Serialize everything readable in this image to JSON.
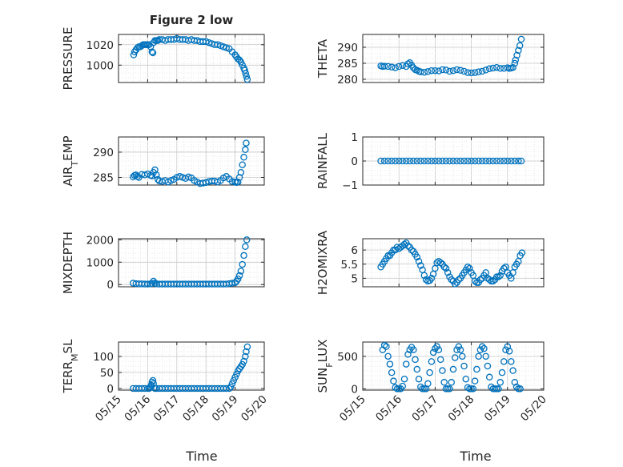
{
  "figure": {
    "title": "Figure 2 low",
    "xlabel": "Time"
  },
  "colors": {
    "marker": "#0072BD",
    "axis": "#262626",
    "grid": "#c8c8c8",
    "minor_grid": "#e2e2e2"
  },
  "chart_data": [
    {
      "type": "scatter",
      "ylabel": "PRESSURE",
      "ylim": [
        983,
        1030
      ],
      "yticks": [
        1000,
        1020
      ],
      "show_xticklabels": false,
      "x": [
        0.52,
        0.55,
        0.6,
        0.65,
        0.7,
        0.75,
        0.8,
        0.85,
        0.9,
        0.95,
        1.0,
        1.05,
        1.1,
        1.15,
        1.18,
        1.2,
        1.25,
        1.3,
        1.35,
        1.4,
        1.5,
        1.6,
        1.7,
        1.8,
        1.9,
        2.0,
        2.1,
        2.2,
        2.3,
        2.4,
        2.5,
        2.6,
        2.7,
        2.8,
        2.9,
        3.0,
        3.1,
        3.2,
        3.3,
        3.4,
        3.5,
        3.6,
        3.7,
        3.8,
        3.9,
        4.0,
        4.05,
        4.1,
        4.15,
        4.2,
        4.25,
        4.3,
        4.33,
        4.36,
        4.39,
        4.42
      ],
      "y": [
        1010,
        1013,
        1015,
        1017,
        1018,
        1018,
        1019,
        1020,
        1020,
        1020,
        1020,
        1020,
        1018,
        1013,
        1012,
        1022,
        1024,
        1024,
        1024,
        1025,
        1025,
        1024,
        1025,
        1025,
        1025,
        1026,
        1025,
        1025,
        1025,
        1024,
        1025,
        1024,
        1024,
        1023,
        1023,
        1023,
        1022,
        1021,
        1020,
        1020,
        1019,
        1018,
        1017,
        1016,
        1013,
        1010,
        1008,
        1006,
        1005,
        1003,
        1000,
        997,
        995,
        992,
        989,
        986
      ]
    },
    {
      "type": "scatter",
      "ylabel": "THETA",
      "ylim": [
        279,
        294
      ],
      "yticks": [
        280,
        285,
        290
      ],
      "show_xticklabels": false,
      "x": [
        0.5,
        0.55,
        0.6,
        0.7,
        0.8,
        0.9,
        1.0,
        1.1,
        1.2,
        1.25,
        1.3,
        1.35,
        1.4,
        1.45,
        1.5,
        1.55,
        1.6,
        1.7,
        1.8,
        1.9,
        2.0,
        2.1,
        2.2,
        2.3,
        2.4,
        2.5,
        2.6,
        2.7,
        2.8,
        2.9,
        3.0,
        3.1,
        3.2,
        3.3,
        3.4,
        3.5,
        3.6,
        3.7,
        3.8,
        3.9,
        4.0,
        4.05,
        4.1,
        4.15,
        4.2,
        4.22,
        4.26,
        4.3,
        4.34,
        4.38
      ],
      "y": [
        284.2,
        284.0,
        284.1,
        284.0,
        283.8,
        283.6,
        284.0,
        284.3,
        284.0,
        284.8,
        285.2,
        284.4,
        283.6,
        283.0,
        282.8,
        282.5,
        282.3,
        282.2,
        282.4,
        282.7,
        282.7,
        282.6,
        283.0,
        282.9,
        282.5,
        282.7,
        283.0,
        282.8,
        282.5,
        282.1,
        282.0,
        282.1,
        282.3,
        282.5,
        282.9,
        283.3,
        283.5,
        283.7,
        283.4,
        283.4,
        283.6,
        283.4,
        283.5,
        283.7,
        285.0,
        286.0,
        287.5,
        289.0,
        290.5,
        292.5
      ]
    },
    {
      "type": "scatter",
      "ylabel": "AIR_TEMP",
      "ylim": [
        283.5,
        293
      ],
      "yticks": [
        285,
        290
      ],
      "show_xticklabels": false,
      "x": [
        0.5,
        0.55,
        0.6,
        0.65,
        0.7,
        0.8,
        0.9,
        1.0,
        1.1,
        1.15,
        1.2,
        1.25,
        1.3,
        1.35,
        1.4,
        1.5,
        1.6,
        1.7,
        1.8,
        1.9,
        2.0,
        2.1,
        2.2,
        2.3,
        2.4,
        2.5,
        2.6,
        2.7,
        2.8,
        2.9,
        3.0,
        3.1,
        3.2,
        3.3,
        3.4,
        3.5,
        3.6,
        3.7,
        3.8,
        3.9,
        4.0,
        4.05,
        4.1,
        4.15,
        4.2,
        4.25,
        4.3,
        4.35,
        4.38
      ],
      "y": [
        285.1,
        285.4,
        285.5,
        285.2,
        285.0,
        285.6,
        285.5,
        285.7,
        285.4,
        285.3,
        286.0,
        286.5,
        285.5,
        284.6,
        284.3,
        284.2,
        284.4,
        284.1,
        284.4,
        284.6,
        285.0,
        285.2,
        285.0,
        284.8,
        285.1,
        284.9,
        284.4,
        284.1,
        283.8,
        283.9,
        284.0,
        284.2,
        284.3,
        284.3,
        284.1,
        284.4,
        284.9,
        285.2,
        284.7,
        284.2,
        284.1,
        284.0,
        284.1,
        285.0,
        286.0,
        287.5,
        289.0,
        290.5,
        291.8
      ]
    },
    {
      "type": "scatter",
      "ylabel": "RAINFALL",
      "ylim": [
        -1,
        1
      ],
      "yticks": [
        -1,
        0,
        1
      ],
      "show_xticklabels": false,
      "x": [
        0.5,
        0.6,
        0.7,
        0.8,
        0.9,
        1.0,
        1.1,
        1.2,
        1.3,
        1.4,
        1.5,
        1.6,
        1.7,
        1.8,
        1.9,
        2.0,
        2.1,
        2.2,
        2.3,
        2.4,
        2.5,
        2.6,
        2.7,
        2.8,
        2.9,
        3.0,
        3.1,
        3.2,
        3.3,
        3.4,
        3.5,
        3.6,
        3.7,
        3.8,
        3.9,
        4.0,
        4.1,
        4.2,
        4.3,
        4.38
      ],
      "y": [
        0,
        0,
        0,
        0,
        0,
        0,
        0,
        0,
        0,
        0,
        0,
        0,
        0,
        0,
        0,
        0,
        0,
        0,
        0,
        0,
        0,
        0,
        0,
        0,
        0,
        0,
        0,
        0,
        0,
        0,
        0,
        0,
        0,
        0,
        0,
        0,
        0,
        0,
        0,
        0
      ]
    },
    {
      "type": "scatter",
      "ylabel": "MIXDEPTH",
      "ylim": [
        -100,
        2050
      ],
      "yticks": [
        0,
        1000,
        2000
      ],
      "show_xticklabels": false,
      "x": [
        0.5,
        0.6,
        0.7,
        0.8,
        0.9,
        1.0,
        1.1,
        1.15,
        1.2,
        1.25,
        1.3,
        1.4,
        1.5,
        1.6,
        1.7,
        1.8,
        1.9,
        2.0,
        2.1,
        2.2,
        2.3,
        2.4,
        2.5,
        2.6,
        2.7,
        2.8,
        2.9,
        3.0,
        3.1,
        3.2,
        3.3,
        3.4,
        3.5,
        3.6,
        3.7,
        3.8,
        3.9,
        4.0,
        4.05,
        4.1,
        4.15,
        4.2,
        4.25,
        4.3,
        4.35,
        4.4
      ],
      "y": [
        60,
        40,
        30,
        30,
        20,
        20,
        30,
        50,
        150,
        60,
        30,
        20,
        20,
        20,
        20,
        20,
        20,
        20,
        20,
        20,
        20,
        20,
        20,
        20,
        20,
        20,
        20,
        20,
        20,
        20,
        20,
        20,
        20,
        20,
        20,
        40,
        60,
        80,
        150,
        250,
        400,
        600,
        900,
        1300,
        1700,
        2000
      ]
    },
    {
      "type": "scatter",
      "ylabel": "H2OMIXRA",
      "ylim": [
        4.7,
        6.4
      ],
      "yticks": [
        5,
        5.5,
        6
      ],
      "show_xticklabels": false,
      "x": [
        0.5,
        0.55,
        0.6,
        0.65,
        0.7,
        0.75,
        0.8,
        0.85,
        0.9,
        0.95,
        1.0,
        1.05,
        1.1,
        1.15,
        1.2,
        1.25,
        1.3,
        1.35,
        1.4,
        1.45,
        1.5,
        1.55,
        1.6,
        1.65,
        1.7,
        1.75,
        1.8,
        1.85,
        1.9,
        1.95,
        2.0,
        2.05,
        2.1,
        2.15,
        2.2,
        2.25,
        2.3,
        2.35,
        2.4,
        2.45,
        2.5,
        2.55,
        2.6,
        2.65,
        2.7,
        2.75,
        2.8,
        2.85,
        2.9,
        2.95,
        3.0,
        3.05,
        3.1,
        3.15,
        3.2,
        3.25,
        3.3,
        3.35,
        3.4,
        3.45,
        3.5,
        3.55,
        3.6,
        3.65,
        3.7,
        3.75,
        3.8,
        3.85,
        3.9,
        3.95,
        4.0,
        4.05,
        4.1,
        4.15,
        4.2,
        4.25,
        4.3,
        4.35,
        4.4
      ],
      "y": [
        5.4,
        5.5,
        5.6,
        5.7,
        5.8,
        5.8,
        5.9,
        6.0,
        6.0,
        6.1,
        6.05,
        6.1,
        6.15,
        6.2,
        6.25,
        6.15,
        6.1,
        6.0,
        5.95,
        5.85,
        5.75,
        5.6,
        5.45,
        5.3,
        5.1,
        4.95,
        4.9,
        4.92,
        5.0,
        5.15,
        5.35,
        5.55,
        5.6,
        5.55,
        5.5,
        5.4,
        5.35,
        5.2,
        5.05,
        4.95,
        4.9,
        4.8,
        4.85,
        4.95,
        5.0,
        5.1,
        5.2,
        5.3,
        5.4,
        5.35,
        5.2,
        5.1,
        4.9,
        4.85,
        4.85,
        4.95,
        5.0,
        5.1,
        5.2,
        5.0,
        4.95,
        4.9,
        4.9,
        4.95,
        5.05,
        5.05,
        5.1,
        5.25,
        5.35,
        5.4,
        5.2,
        5.1,
        5.0,
        5.2,
        5.4,
        5.5,
        5.6,
        5.8,
        5.9
      ]
    },
    {
      "type": "scatter",
      "ylabel": "TERR_MSL",
      "ylim": [
        -5,
        145
      ],
      "yticks": [
        0,
        50,
        100
      ],
      "show_xticklabels": true,
      "x": [
        0.5,
        0.6,
        0.7,
        0.8,
        0.9,
        1.0,
        1.05,
        1.1,
        1.12,
        1.15,
        1.18,
        1.2,
        1.25,
        1.3,
        1.4,
        1.5,
        1.6,
        1.7,
        1.8,
        1.9,
        2.0,
        2.1,
        2.2,
        2.3,
        2.4,
        2.5,
        2.6,
        2.7,
        2.8,
        2.9,
        3.0,
        3.1,
        3.2,
        3.3,
        3.4,
        3.5,
        3.6,
        3.7,
        3.8,
        3.85,
        3.9,
        3.95,
        4.0,
        4.05,
        4.1,
        4.15,
        4.2,
        4.25,
        4.3,
        4.35,
        4.38,
        4.42
      ],
      "y": [
        0,
        0,
        0,
        0,
        0,
        0,
        0,
        5,
        10,
        20,
        25,
        15,
        0,
        0,
        0,
        0,
        0,
        0,
        0,
        0,
        0,
        0,
        0,
        0,
        0,
        0,
        0,
        0,
        0,
        0,
        0,
        0,
        0,
        0,
        0,
        0,
        0,
        0,
        0,
        5,
        15,
        25,
        35,
        45,
        55,
        62,
        68,
        75,
        85,
        100,
        115,
        130
      ]
    },
    {
      "type": "scatter",
      "ylabel": "SUN_FLUX",
      "ylim": [
        -20,
        720
      ],
      "yticks": [
        0,
        500
      ],
      "show_xticklabels": true,
      "x": [
        0.55,
        0.6,
        0.65,
        0.7,
        0.75,
        0.8,
        0.85,
        0.9,
        0.95,
        1.0,
        1.05,
        1.1,
        1.15,
        1.2,
        1.25,
        1.3,
        1.35,
        1.4,
        1.45,
        1.5,
        1.55,
        1.6,
        1.65,
        1.7,
        1.75,
        1.8,
        1.85,
        1.9,
        1.95,
        2.0,
        2.05,
        2.1,
        2.15,
        2.2,
        2.25,
        2.3,
        2.35,
        2.4,
        2.45,
        2.5,
        2.55,
        2.6,
        2.65,
        2.7,
        2.75,
        2.8,
        2.85,
        2.9,
        2.95,
        3.0,
        3.05,
        3.1,
        3.15,
        3.2,
        3.25,
        3.3,
        3.35,
        3.4,
        3.45,
        3.5,
        3.55,
        3.6,
        3.65,
        3.7,
        3.75,
        3.8,
        3.85,
        3.9,
        3.95,
        4.0,
        4.05,
        4.1,
        4.15,
        4.2,
        4.25,
        4.3,
        4.35
      ],
      "y": [
        600,
        670,
        650,
        500,
        380,
        250,
        120,
        20,
        0,
        0,
        0,
        40,
        150,
        380,
        530,
        600,
        640,
        600,
        450,
        300,
        150,
        30,
        0,
        0,
        0,
        80,
        250,
        420,
        560,
        620,
        650,
        600,
        450,
        280,
        100,
        0,
        0,
        0,
        100,
        300,
        480,
        600,
        650,
        600,
        500,
        350,
        150,
        20,
        0,
        0,
        0,
        120,
        300,
        500,
        600,
        650,
        620,
        500,
        350,
        180,
        30,
        0,
        0,
        0,
        0,
        100,
        250,
        420,
        600,
        650,
        580,
        420,
        280,
        100,
        30,
        0,
        0
      ]
    }
  ],
  "x_ticks": [
    "05/15",
    "05/16",
    "05/17",
    "05/18",
    "05/19",
    "05/20"
  ],
  "xlim": [
    0,
    5
  ]
}
